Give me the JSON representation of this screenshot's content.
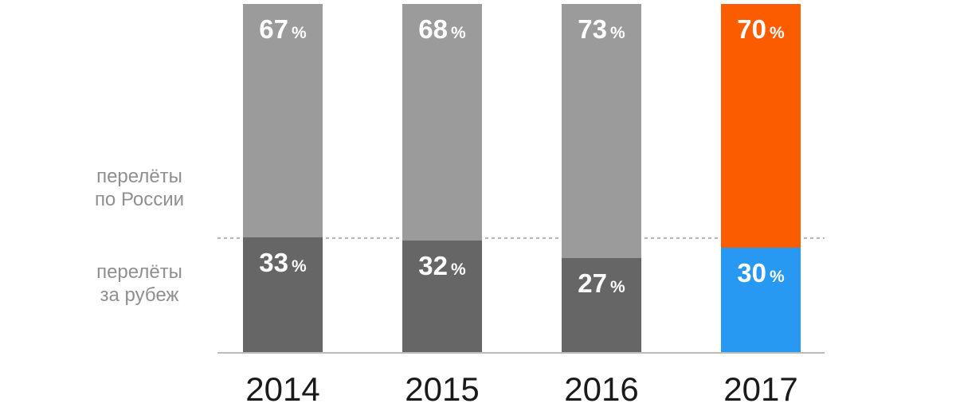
{
  "chart_data": {
    "type": "bar",
    "variant": "stacked-percentage-columns",
    "title": "",
    "xlabel": "",
    "ylabel": "",
    "ylim": [
      0,
      100
    ],
    "grid": false,
    "legend_position": "left",
    "categories": [
      "2014",
      "2015",
      "2016",
      "2017"
    ],
    "series": [
      {
        "name": "перелёты по России",
        "name_lines": [
          "перелёты",
          "по России"
        ],
        "position": "top",
        "values": [
          67,
          68,
          73,
          70
        ]
      },
      {
        "name": "перелёты за рубеж",
        "name_lines": [
          "перелёты",
          "за рубеж"
        ],
        "position": "bottom",
        "values": [
          33,
          32,
          27,
          30
        ]
      }
    ],
    "value_suffix": "%",
    "guideline_pct": 33,
    "highlight_category_index": 3,
    "colors": {
      "top_default": "#9B9B9B",
      "bottom_default": "#666666",
      "top_highlight": "#FC5C00",
      "bottom_highlight": "#2899F2",
      "value_label": "#FFFFFF",
      "category_label": "#1A1A1A",
      "series_label": "#8F8F8F",
      "axis_line": "#BBBBBB",
      "guideline": "#B3B3B3"
    }
  }
}
